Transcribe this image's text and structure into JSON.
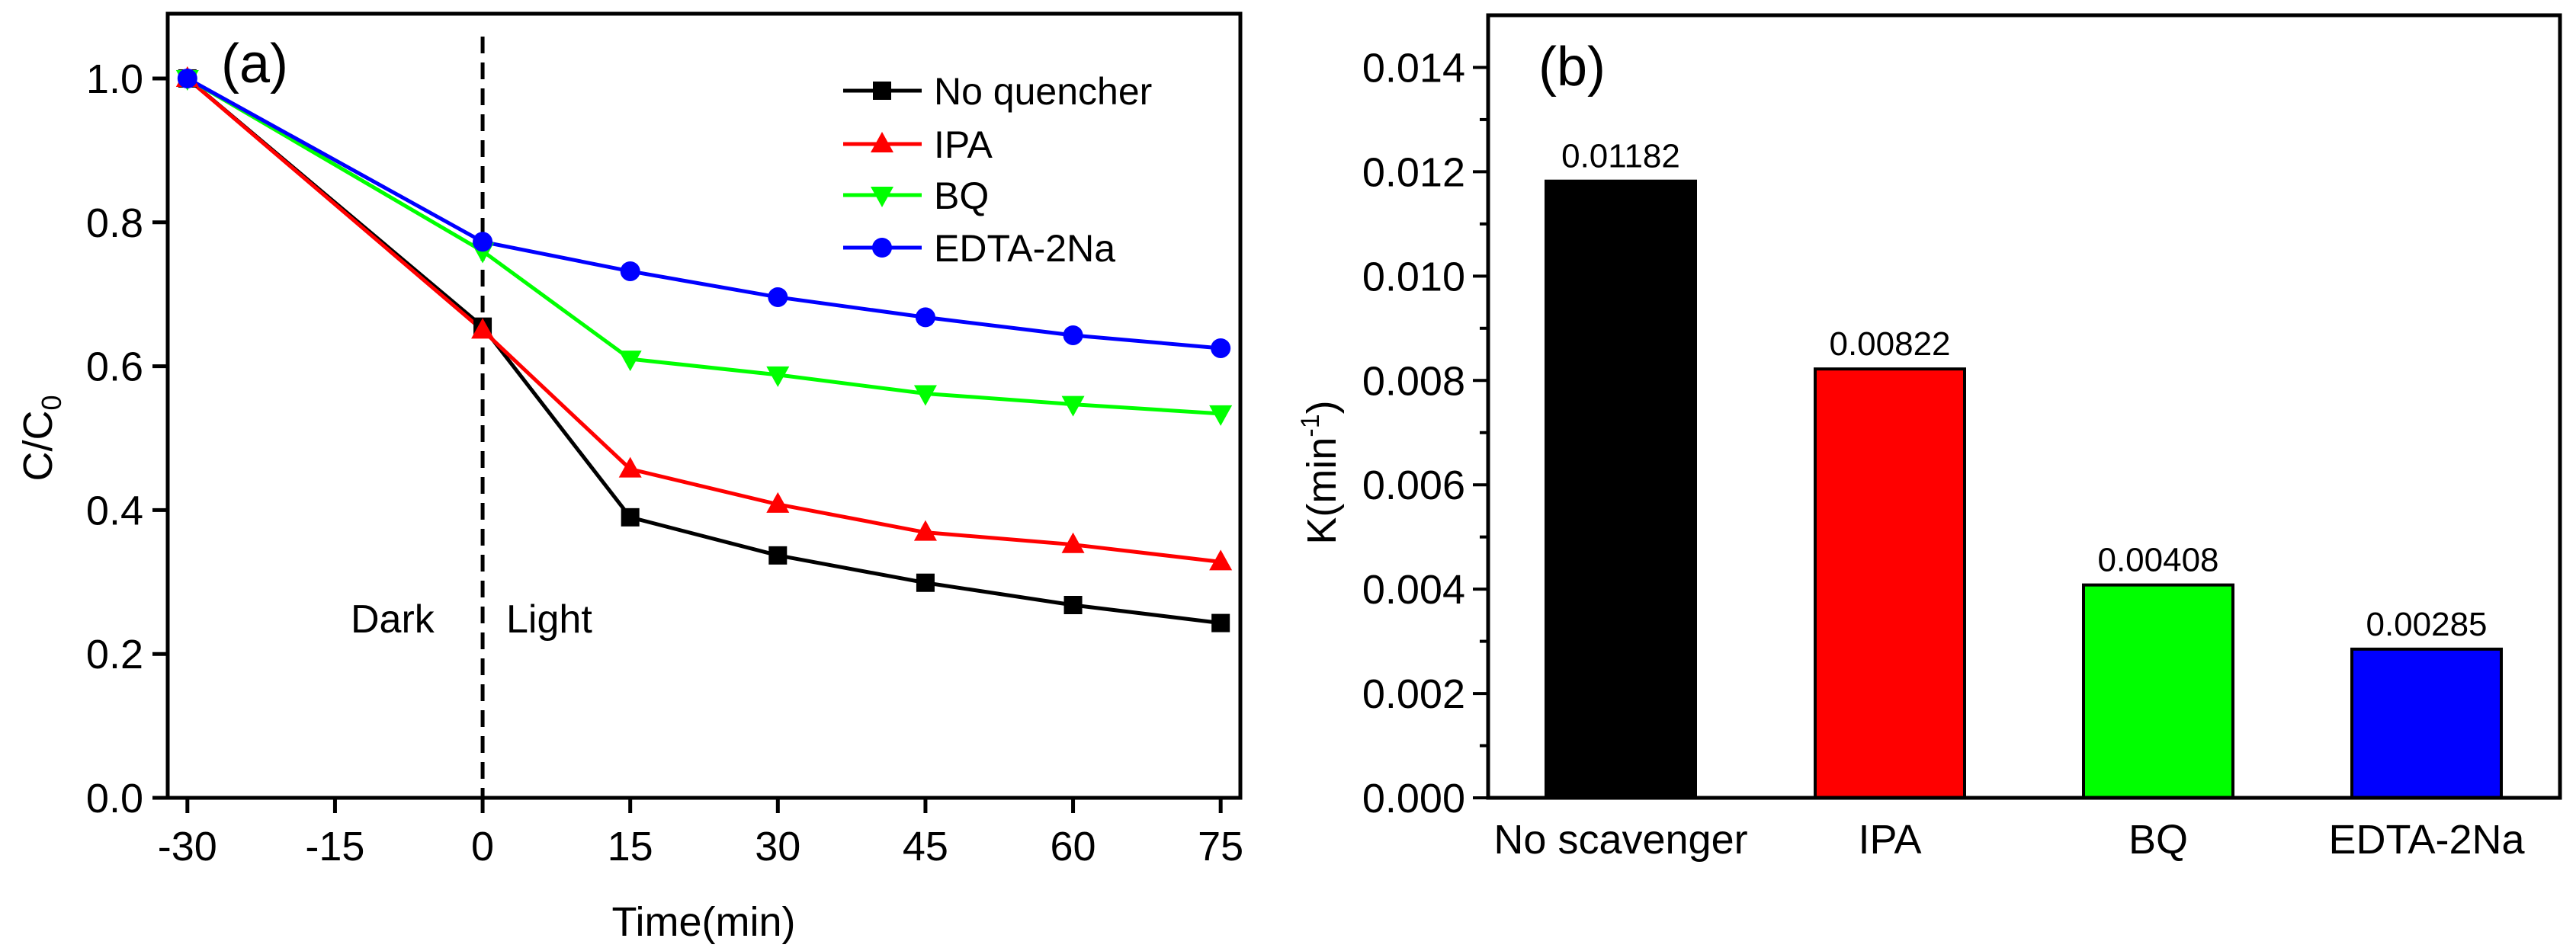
{
  "chart_data": [
    {
      "type": "line",
      "panel_label": "(a)",
      "xlabel": "Time(min)",
      "ylabel": "C/C",
      "ylabel_sub": "0",
      "x": [
        -30,
        0,
        15,
        30,
        45,
        60,
        75
      ],
      "xticks": [
        -30,
        -15,
        0,
        15,
        30,
        45,
        60,
        75
      ],
      "xtick_labels": [
        "-30",
        "-15",
        "0",
        "15",
        "30",
        "45",
        "60",
        "75"
      ],
      "yticks": [
        0,
        0.2,
        0.4,
        0.6,
        0.8,
        1.0
      ],
      "ytick_labels": [
        "0.0",
        "0.2",
        "0.4",
        "0.6",
        "0.8",
        "1.0"
      ],
      "xlim": [
        -32,
        77
      ],
      "ylim": [
        0,
        1.09
      ],
      "grid": false,
      "legend_position": "top-right",
      "annotations": {
        "divider_x": 0,
        "left": "Dark",
        "right": "Light"
      },
      "series": [
        {
          "name": "No quencher",
          "color": "#000000",
          "marker": "square",
          "values": [
            1.0,
            0.655,
            0.39,
            0.337,
            0.299,
            0.268,
            0.243
          ]
        },
        {
          "name": "IPA",
          "color": "#ff0000",
          "marker": "triangle-up",
          "values": [
            1.0,
            0.65,
            0.457,
            0.408,
            0.369,
            0.352,
            0.328
          ]
        },
        {
          "name": "BQ",
          "color": "#00ff00",
          "marker": "triangle-down",
          "values": [
            1.0,
            0.76,
            0.61,
            0.588,
            0.562,
            0.547,
            0.534
          ]
        },
        {
          "name": "EDTA-2Na",
          "color": "#0000ff",
          "marker": "circle",
          "values": [
            1.0,
            0.773,
            0.732,
            0.696,
            0.668,
            0.643,
            0.625
          ]
        }
      ]
    },
    {
      "type": "bar",
      "panel_label": "(b)",
      "xlabel": "",
      "ylabel": "K(min",
      "ylabel_sup": "-1",
      "ylabel_close": ")",
      "categories": [
        "No scavenger",
        "IPA",
        "BQ",
        "EDTA-2Na"
      ],
      "values": [
        0.01182,
        0.00822,
        0.00408,
        0.00285
      ],
      "value_labels": [
        "0.01182",
        "0.00822",
        "0.00408",
        "0.00285"
      ],
      "colors": [
        "#000000",
        "#ff0000",
        "#00ff00",
        "#0000ff"
      ],
      "yticks": [
        0,
        0.002,
        0.004,
        0.006,
        0.008,
        0.01,
        0.012,
        0.014
      ],
      "ytick_labels": [
        "0.000",
        "0.002",
        "0.004",
        "0.006",
        "0.008",
        "0.010",
        "0.012",
        "0.014"
      ],
      "ylim": [
        0,
        0.015
      ],
      "grid": false
    }
  ]
}
